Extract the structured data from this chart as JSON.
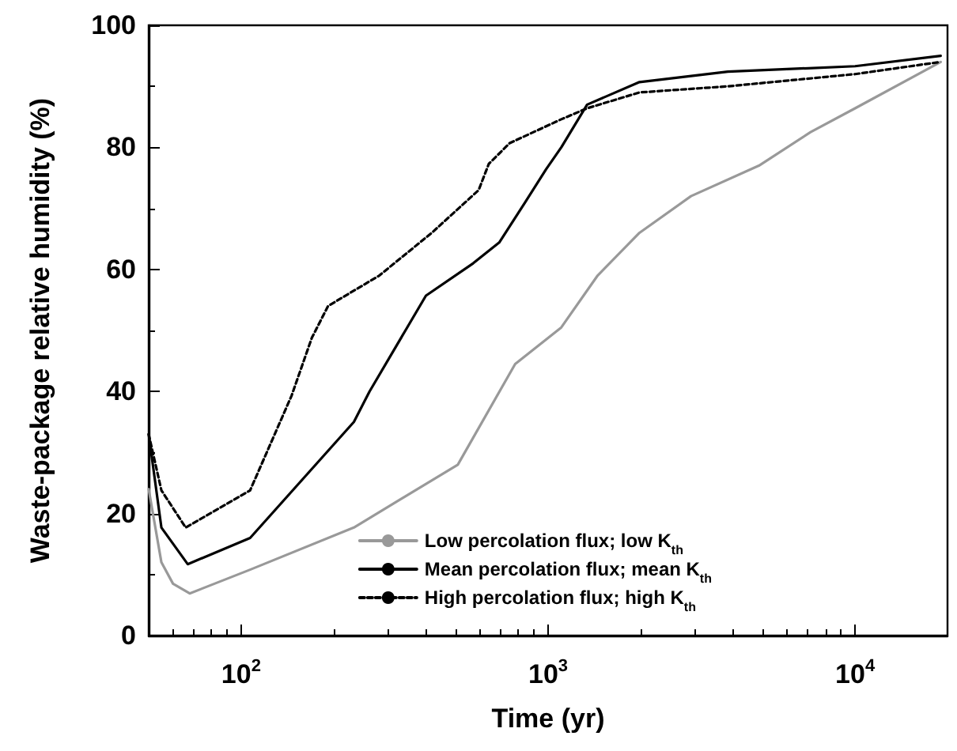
{
  "chart_data": {
    "type": "line",
    "xlabel": "Time (yr)",
    "ylabel": "Waste-package relative humidity (%)",
    "log": "x",
    "xlim": [
      50,
      20000
    ],
    "xticks": [
      {
        "value": 100,
        "label": "10$^{2}$"
      },
      {
        "value": 1000,
        "label": "10$^{3}$"
      },
      {
        "value": 10000,
        "label": "10$^{4}$"
      }
    ],
    "ylim": [
      0,
      100
    ],
    "yticks": [
      0,
      20,
      40,
      60,
      80,
      100
    ],
    "grid": false,
    "legend": "bottom right",
    "marker": "none",
    "series": [
      {
        "name": "Low percolation flux; low K$_{th}$",
        "color": "#999999",
        "line_style": "solid",
        "x": [
          50,
          55,
          60,
          68,
          107,
          233,
          508,
          781,
          1104,
          1450,
          1985,
          2920,
          4860,
          7160,
          10000,
          19000
        ],
        "values": [
          24,
          12,
          8.5,
          6.9,
          10.8,
          17.7,
          28,
          44.5,
          50.5,
          59,
          66,
          72,
          77,
          82.5,
          86.4,
          94
        ]
      },
      {
        "name": "Mean percolation flux; mean K$_{th}$",
        "color": "#000000",
        "line_style": "solid",
        "x": [
          50,
          55,
          67,
          107,
          233,
          262,
          400,
          570,
          693,
          842,
          985,
          1104,
          1340,
          1985,
          3850,
          10000,
          19000
        ],
        "values": [
          33,
          17.7,
          11.7,
          16,
          35,
          40,
          55.7,
          61,
          64.4,
          71,
          76.4,
          80,
          87,
          90.7,
          92.4,
          93.3,
          95
        ]
      },
      {
        "name": "High percolation flux; high K$_{th}$",
        "color": "#000000",
        "line_style": "dashed",
        "x": [
          50,
          55,
          66,
          107,
          146,
          170,
          192,
          282,
          418,
          594,
          641,
          750,
          1104,
          1340,
          1985,
          3850,
          10000,
          19000
        ],
        "values": [
          33,
          23.8,
          17.7,
          23.8,
          39.3,
          48.8,
          54,
          59,
          66,
          73,
          77.3,
          80.7,
          84.6,
          86.4,
          89,
          90,
          92,
          94
        ]
      }
    ]
  }
}
